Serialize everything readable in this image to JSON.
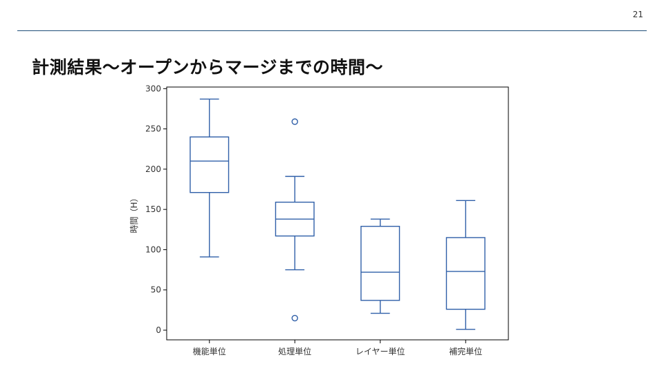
{
  "page_number": "21",
  "title": "計測結果～オープンからマージまでの時間～",
  "chart_data": {
    "type": "box",
    "title": "",
    "xlabel": "",
    "ylabel": "時間（H）",
    "ylim": [
      -12,
      302
    ],
    "yticks": [
      0,
      50,
      100,
      150,
      200,
      250,
      300
    ],
    "grid": false,
    "box_color": "#2f5fa8",
    "categories": [
      "機能単位",
      "処理単位",
      "レイヤー単位",
      "補完単位"
    ],
    "boxes": [
      {
        "category": "機能単位",
        "whisker_low": 91,
        "q1": 171,
        "median": 210,
        "q3": 240,
        "whisker_high": 287,
        "outliers": []
      },
      {
        "category": "処理単位",
        "whisker_low": 75,
        "q1": 117,
        "median": 138,
        "q3": 159,
        "whisker_high": 191,
        "outliers": [
          259,
          15
        ]
      },
      {
        "category": "レイヤー単位",
        "whisker_low": 21,
        "q1": 37,
        "median": 72,
        "q3": 129,
        "whisker_high": 138,
        "outliers": []
      },
      {
        "category": "補完単位",
        "whisker_low": 1,
        "q1": 26,
        "median": 73,
        "q3": 115,
        "whisker_high": 161,
        "outliers": []
      }
    ]
  }
}
